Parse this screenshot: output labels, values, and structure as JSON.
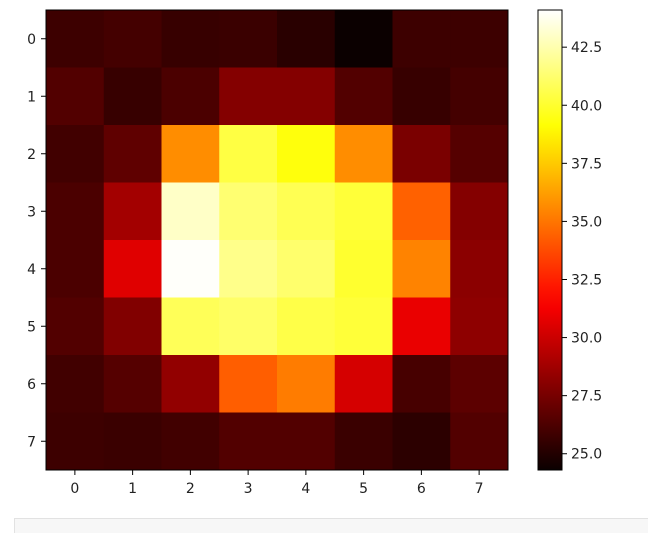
{
  "chart_data": {
    "type": "heatmap",
    "colormap": "hot",
    "x_ticks": [
      "0",
      "1",
      "2",
      "3",
      "4",
      "5",
      "6",
      "7"
    ],
    "y_ticks": [
      "0",
      "1",
      "2",
      "3",
      "4",
      "5",
      "6",
      "7"
    ],
    "values": [
      [
        25.8,
        26.0,
        25.6,
        25.7,
        25.2,
        24.3,
        25.8,
        25.8
      ],
      [
        26.4,
        25.6,
        26.2,
        27.9,
        27.9,
        26.4,
        25.6,
        26.0
      ],
      [
        25.9,
        26.8,
        35.7,
        40.4,
        39.3,
        35.7,
        27.6,
        26.5
      ],
      [
        26.2,
        28.8,
        43.0,
        41.3,
        40.7,
        40.2,
        34.4,
        27.9
      ],
      [
        26.2,
        30.6,
        44.0,
        41.8,
        41.2,
        40.0,
        35.4,
        28.1
      ],
      [
        26.4,
        27.8,
        40.8,
        41.1,
        40.5,
        40.2,
        30.9,
        28.2
      ],
      [
        25.9,
        26.5,
        28.3,
        34.3,
        35.2,
        30.3,
        26.1,
        26.7
      ],
      [
        25.8,
        25.7,
        25.9,
        26.4,
        26.4,
        25.7,
        25.3,
        26.4
      ]
    ],
    "colorbar": {
      "range": [
        24.3,
        44.1
      ],
      "ticks": [
        "25.0",
        "27.5",
        "30.0",
        "32.5",
        "35.0",
        "37.5",
        "40.0",
        "42.5"
      ],
      "tick_values": [
        25.0,
        27.5,
        30.0,
        32.5,
        35.0,
        37.5,
        40.0,
        42.5
      ]
    }
  }
}
